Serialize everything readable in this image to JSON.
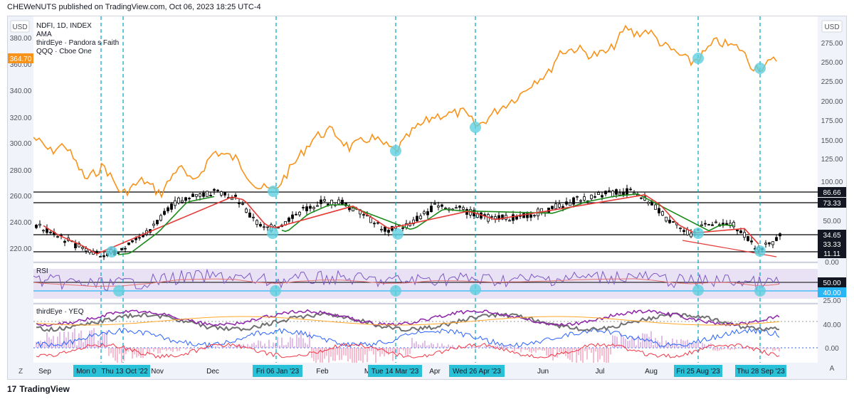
{
  "header": {
    "publisher_line": "CHEWeNUTS published on TradingView.com, Oct 06, 2023 18:25 UTC-4"
  },
  "left_axis": {
    "currency": "USD",
    "price_badge": "364.70",
    "labels": [
      "380.00",
      "360.00",
      "340.00",
      "320.00",
      "300.00",
      "280.00",
      "260.00",
      "240.00",
      "220.00"
    ]
  },
  "right_axis": {
    "currency": "USD",
    "labels": [
      "275.00",
      "250.00",
      "225.00",
      "200.00",
      "175.00",
      "150.00",
      "125.00",
      "100.00",
      "50.00",
      "0.00"
    ],
    "badges": [
      "86.66",
      "73.33",
      "34.65",
      "33.33",
      "11.11"
    ],
    "rsi_badges": [
      "50.00",
      "40.00"
    ],
    "rsi_label": "25.00",
    "yeq_labels": [
      "40.00",
      "0.00"
    ],
    "auto_btn": "A"
  },
  "legend": {
    "line1": "NDFI, 1D, INDEX",
    "line2": "AMA",
    "line3": "thirdEye · Pandora s Faith",
    "line4": "QQQ · Cboe One"
  },
  "rsi": {
    "title": "RSI"
  },
  "yeq": {
    "title": "thirdEye · YEQ"
  },
  "time_axis": {
    "zoom_btn": "Z",
    "months": [
      "Sep",
      "Nov",
      "Dec",
      "Feb",
      "Apr",
      "Jun",
      "Jul",
      "Aug"
    ],
    "highlights": [
      "Mon 0",
      "Thu 13 Oct '22",
      "Fri 06 Jan '23",
      "Tue 14 Mar '23",
      "Wed 26 Apr '23",
      "Fri 25 Aug '23",
      "Thu 28 Sep '23"
    ],
    "fragments": [
      "M"
    ]
  },
  "footer": {
    "brand": "TradingView",
    "logo_mark": "17"
  },
  "colors": {
    "qqq_line": "#f7931a",
    "ama_red": "#e53935",
    "ama_green": "#1b8a1b",
    "dashed_markers": "#00a3c4",
    "circle_markers": "#5fcfe0",
    "rsi_line": "#7e57c2",
    "rsi_ma": "#e57373",
    "rsi_band": "#e9e2f5"
  }
}
